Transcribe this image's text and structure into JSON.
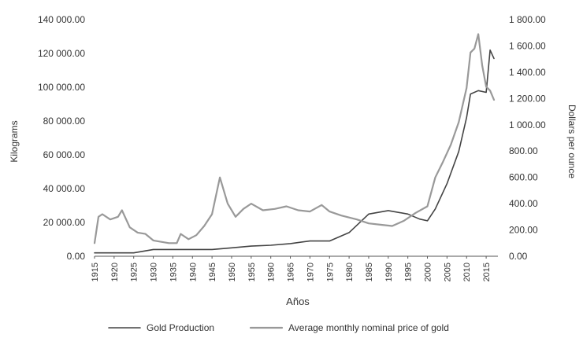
{
  "chart_data": {
    "type": "line",
    "title": "",
    "xlabel": "Años",
    "ylabel_left": "Kilograms",
    "ylabel_right": "Dollars per ounce",
    "xlim": [
      1915,
      2018
    ],
    "ylim_left": [
      0,
      140000
    ],
    "ylim_right": [
      0,
      1800
    ],
    "x_ticks": [
      "1915",
      "1920",
      "1925",
      "1930",
      "1935",
      "1940",
      "1945",
      "1950",
      "1955",
      "1960",
      "1965",
      "1970",
      "1975",
      "1980",
      "1985",
      "1990",
      "1995",
      "2000",
      "2005",
      "2010",
      "2015"
    ],
    "y_left_ticks": [
      "0.00",
      "20 000.00",
      "40 000.00",
      "60 000.00",
      "80 000.00",
      "100 000.00",
      "120 000.00",
      "140 000.00"
    ],
    "y_left_tick_values": [
      0,
      20000,
      40000,
      60000,
      80000,
      100000,
      120000,
      140000
    ],
    "y_right_ticks": [
      "0.00",
      "200.00",
      "400.00",
      "600.00",
      "800.00",
      "1 000.00",
      "1 200.00",
      "1 400.00",
      "1 600.00",
      "1 800.00"
    ],
    "y_right_tick_values": [
      0,
      200,
      400,
      600,
      800,
      1000,
      1200,
      1400,
      1600,
      1800
    ],
    "legend_position": "bottom",
    "series": [
      {
        "name": "Gold Production",
        "axis": "left",
        "color": "#444444",
        "stroke_width": 1.6,
        "x": [
          1915,
          1920,
          1925,
          1930,
          1935,
          1940,
          1945,
          1950,
          1955,
          1960,
          1965,
          1970,
          1975,
          1980,
          1985,
          1990,
          1995,
          1998,
          2000,
          2002,
          2005,
          2008,
          2010,
          2011,
          2013,
          2015,
          2016,
          2017
        ],
        "y": [
          2000,
          2000,
          2000,
          4000,
          4000,
          4000,
          4000,
          5000,
          6000,
          6500,
          7500,
          9000,
          9000,
          14000,
          25000,
          27000,
          25000,
          22000,
          21000,
          28000,
          43000,
          62000,
          82000,
          96000,
          98000,
          97000,
          122000,
          117000
        ]
      },
      {
        "name": "Average monthly nominal price of gold",
        "axis": "right",
        "color": "#999999",
        "stroke_width": 2.2,
        "x": [
          1915,
          1916,
          1917,
          1919,
          1921,
          1922,
          1924,
          1926,
          1928,
          1930,
          1934,
          1936,
          1937,
          1939,
          1941,
          1943,
          1945,
          1947,
          1949,
          1951,
          1953,
          1955,
          1958,
          1961,
          1964,
          1967,
          1970,
          1973,
          1975,
          1978,
          1982,
          1985,
          1988,
          1991,
          1994,
          1997,
          2000,
          2002,
          2004,
          2006,
          2008,
          2010,
          2011,
          2012,
          2013,
          2014,
          2015,
          2016,
          2017
        ],
        "y": [
          100,
          300,
          320,
          280,
          300,
          350,
          220,
          180,
          170,
          120,
          100,
          100,
          170,
          130,
          160,
          230,
          320,
          600,
          400,
          300,
          360,
          400,
          350,
          360,
          380,
          350,
          340,
          390,
          340,
          310,
          280,
          250,
          240,
          230,
          270,
          330,
          380,
          600,
          720,
          850,
          1020,
          1280,
          1550,
          1580,
          1690,
          1450,
          1290,
          1260,
          1190
        ]
      }
    ]
  }
}
